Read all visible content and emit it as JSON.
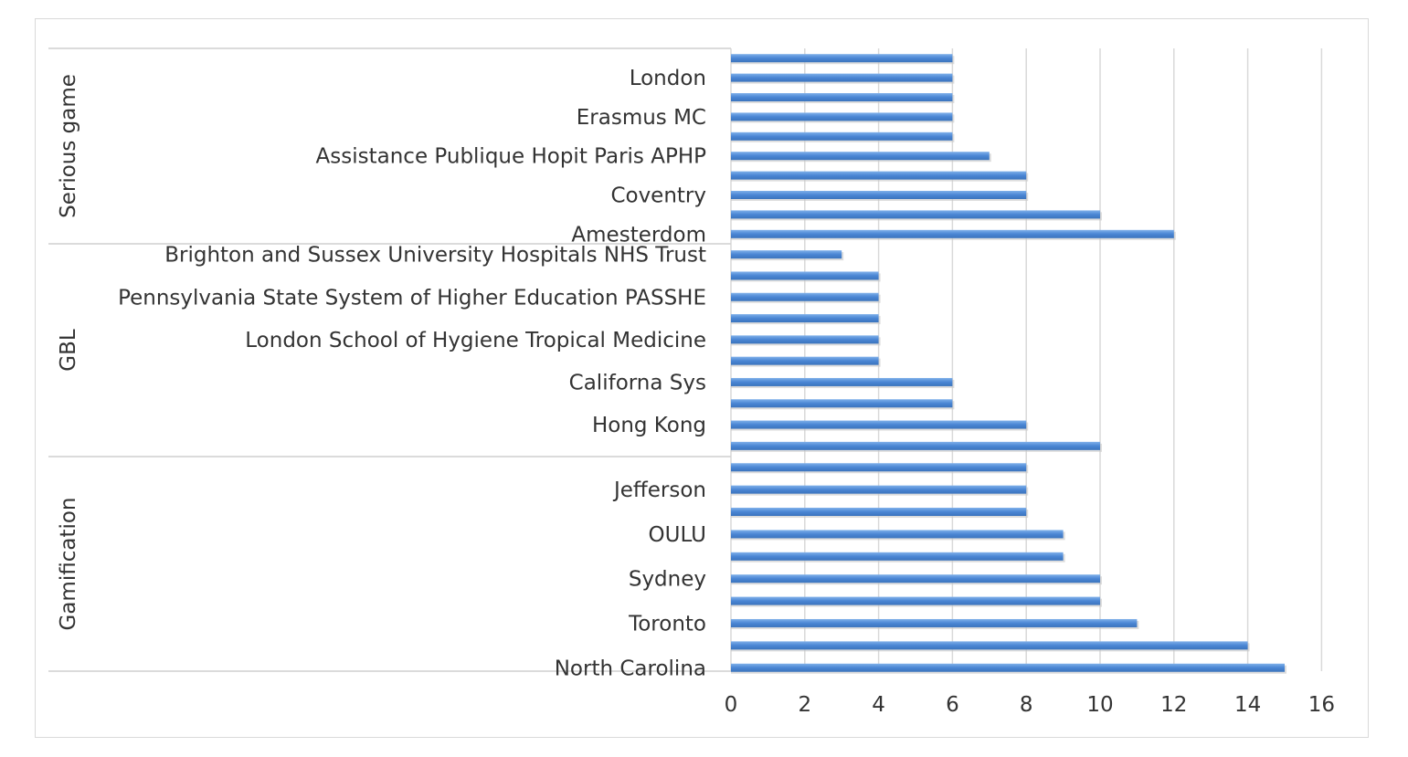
{
  "chart_data": {
    "type": "bar",
    "orientation": "horizontal",
    "title": "",
    "xlabel": "",
    "ylabel": "",
    "xlim": [
      0,
      16
    ],
    "x_ticks": [
      0,
      2,
      4,
      6,
      8,
      10,
      12,
      14,
      16
    ],
    "grid": "vertical",
    "bar_color": "#4a86d4",
    "groups": [
      {
        "name": "Serious game",
        "bars": [
          {
            "label": "",
            "value": 6
          },
          {
            "label": "London",
            "value": 6
          },
          {
            "label": "",
            "value": 6
          },
          {
            "label": "Erasmus MC",
            "value": 6
          },
          {
            "label": "",
            "value": 6
          },
          {
            "label": "Assistance Publique Hopit Paris APHP",
            "value": 7
          },
          {
            "label": "",
            "value": 8
          },
          {
            "label": "Coventry",
            "value": 8
          },
          {
            "label": "",
            "value": 10
          },
          {
            "label": "Amesterdom",
            "value": 12
          }
        ]
      },
      {
        "name": "GBL",
        "bars": [
          {
            "label": "Brighton and Sussex University Hospitals NHS Trust",
            "value": 3
          },
          {
            "label": "",
            "value": 4
          },
          {
            "label": "Pennsylvania State System of Higher Education PASSHE",
            "value": 4
          },
          {
            "label": "",
            "value": 4
          },
          {
            "label": "London School of Hygiene Tropical Medicine",
            "value": 4
          },
          {
            "label": "",
            "value": 4
          },
          {
            "label": "Californa Sys",
            "value": 6
          },
          {
            "label": "",
            "value": 6
          },
          {
            "label": "Hong Kong",
            "value": 8
          },
          {
            "label": "",
            "value": 10
          }
        ]
      },
      {
        "name": "Gamification",
        "bars": [
          {
            "label": "",
            "value": 8
          },
          {
            "label": "Jefferson",
            "value": 8
          },
          {
            "label": "",
            "value": 8
          },
          {
            "label": "OULU",
            "value": 9
          },
          {
            "label": "",
            "value": 9
          },
          {
            "label": "Sydney",
            "value": 10
          },
          {
            "label": "",
            "value": 10
          },
          {
            "label": "Toronto",
            "value": 11
          },
          {
            "label": "",
            "value": 14
          },
          {
            "label": "North Carolina",
            "value": 15
          }
        ]
      }
    ]
  }
}
